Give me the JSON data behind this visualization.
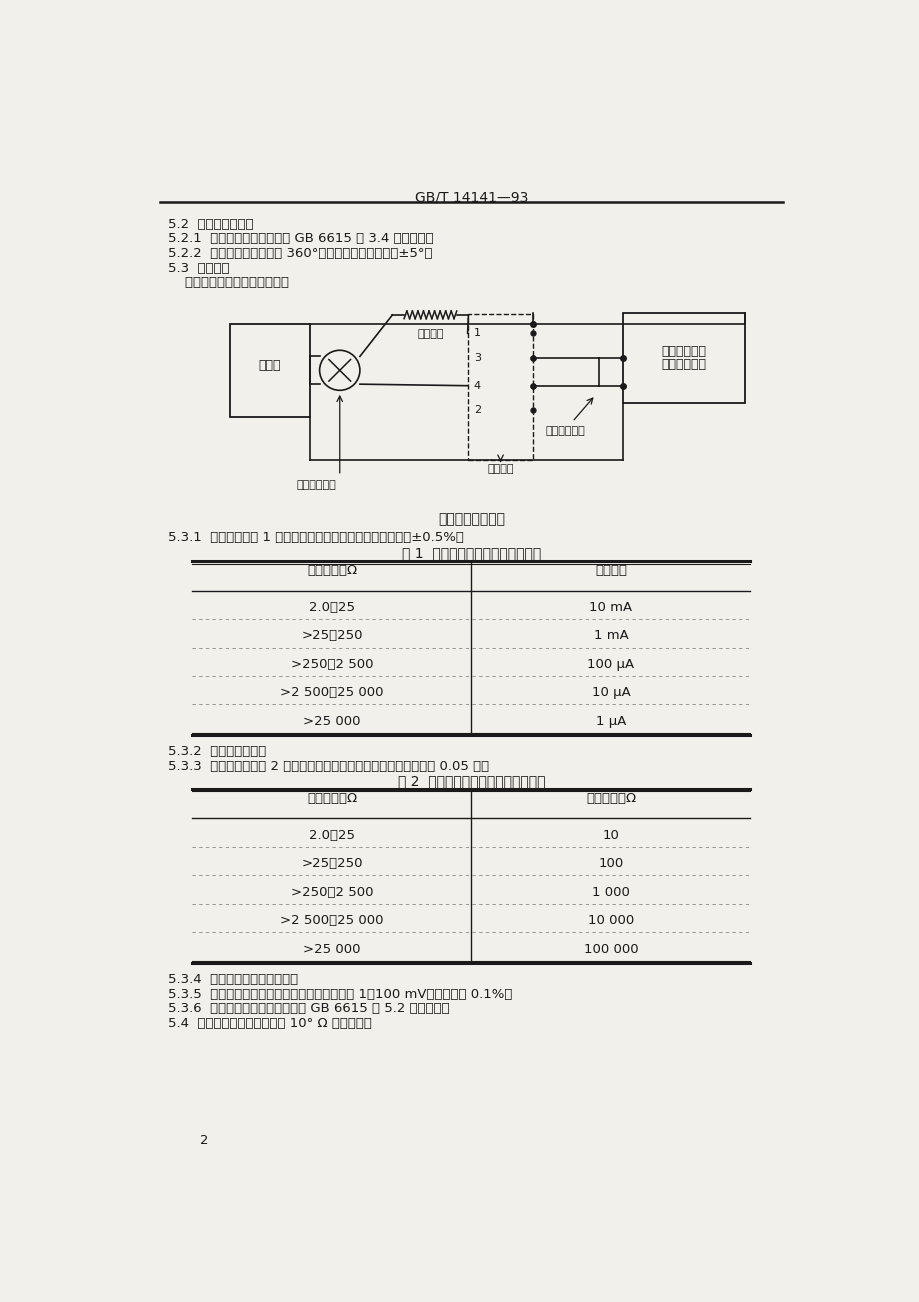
{
  "header": "GB/T 14141—93",
  "bg_color": "#f2f0eb",
  "text_color": "#1a1a1a",
  "section_5_2": "5.2  样品台和探针架",
  "section_5_2_1": "5.2.1  样品台和探针架应符合 GB 6615 中 3.4 条的规定。",
  "section_5_2_2": "5.2.2  样品台上应具有旋转 360°的装置。其误差不大于±5°。",
  "section_5_3": "5.3  测量装置",
  "section_5_3_text": "    测量装置的典型电路见下图。",
  "diagram_caption": "典型的电路示意图",
  "section_5_3_1": "5.3.1  恒流源：按表 1 的推荐値提供试样所需的电流。精度为±0.5%。",
  "table1_title": "表 1  测量薄层电阴所要求的电流値",
  "table1_col1": "薄层电阴，Ω",
  "table1_col2": "测试电流",
  "table1_rows": [
    [
      "2.0～25",
      "10 mA"
    ],
    [
      ">25～250",
      "1 mA"
    ],
    [
      ">250～2 500",
      "100 μA"
    ],
    [
      ">2 500～25 000",
      "10 μA"
    ],
    [
      ">25 000",
      "1 μA"
    ]
  ],
  "section_5_3_2": "5.3.2  电流换向开关。",
  "section_5_3_3": "5.3.3  标准电阴：按表 2 的薄层电阴范围选取所需的标准电阴。精度 0.05 级。",
  "table2_title": "表 2  不同薄层电阴范围所用标准电阴",
  "table2_col1": "薄层电阴，Ω",
  "table2_col2": "标准电阴，Ω",
  "table2_rows": [
    [
      "2.0～25",
      "10"
    ],
    [
      ">25～250",
      "100"
    ],
    [
      ">250～2 500",
      "1 000"
    ],
    [
      ">2 500～25 000",
      "10 000"
    ],
    [
      ">25 000",
      "100 000"
    ]
  ],
  "section_5_3_4": "5.3.4  双刀双掴电位选择开关。",
  "section_5_3_5": "5.3.5  电位差计和电流计或数字电压表，量程为 1～100 mV，分辨率为 0.1%。",
  "section_5_3_6": "5.3.6  电子测量装置适用性应符合 GB 6615 中 5.2 条的规定。",
  "section_5_4": "5.4  欧姆表，能指示阴値高达 10° Ω 的漏电阴。",
  "page_number": "2",
  "label_hengliuyuan": "恒流源",
  "label_biaozhun_dianzu": "标准电阴",
  "label_dianwei_xuanze": "电位选择开关",
  "label_dianliu_huanxiang": "电流换向开关",
  "label_tanzhen_xitong": "探针系统",
  "label_diwei_jian_1": "电位计检流计",
  "label_diwei_jian_2": "或电子电压表"
}
